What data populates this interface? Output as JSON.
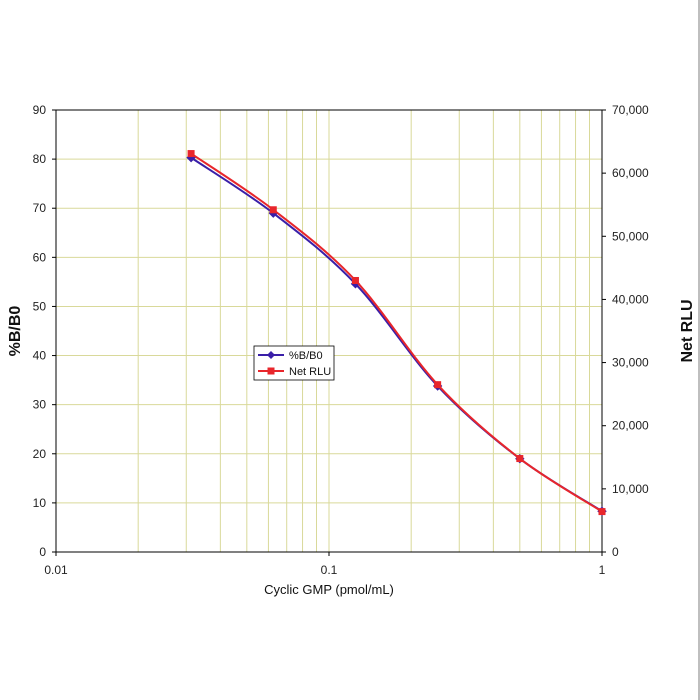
{
  "chart_data": {
    "type": "line",
    "xlabel": "Cyclic GMP (pmol/mL)",
    "ylabel": "%B/B0",
    "y2label": "Net RLU",
    "xscale": "log",
    "xlim": [
      0.01,
      1
    ],
    "ylim": [
      0,
      90
    ],
    "y2lim": [
      0,
      70000
    ],
    "xticks": [
      0.01,
      0.1,
      1
    ],
    "xtick_labels": [
      "0.01",
      "0.1",
      "1"
    ],
    "yticks": [
      0,
      10,
      20,
      30,
      40,
      50,
      60,
      70,
      80,
      90
    ],
    "ytick_labels": [
      "0",
      "10",
      "20",
      "30",
      "40",
      "50",
      "60",
      "70",
      "80",
      "90"
    ],
    "y2ticks": [
      0,
      10000,
      20000,
      30000,
      40000,
      50000,
      60000,
      70000
    ],
    "y2tick_labels": [
      "0",
      "10,000",
      "20,000",
      "30,000",
      "40,000",
      "50,000",
      "60,000",
      "70,000"
    ],
    "grid": true,
    "legend_position": "center-left",
    "x": [
      0.03125,
      0.0625,
      0.125,
      0.25,
      0.5,
      1
    ],
    "series": [
      {
        "name": "%B/B0",
        "axis": "left",
        "marker": "diamond",
        "color": "#3a1fa8",
        "values": [
          80.3,
          69.0,
          54.6,
          33.8,
          19.0,
          8.3
        ]
      },
      {
        "name": "Net RLU",
        "axis": "right",
        "marker": "square",
        "color": "#e8262b",
        "values": [
          63100,
          54200,
          43000,
          26500,
          14800,
          6400
        ]
      }
    ]
  }
}
